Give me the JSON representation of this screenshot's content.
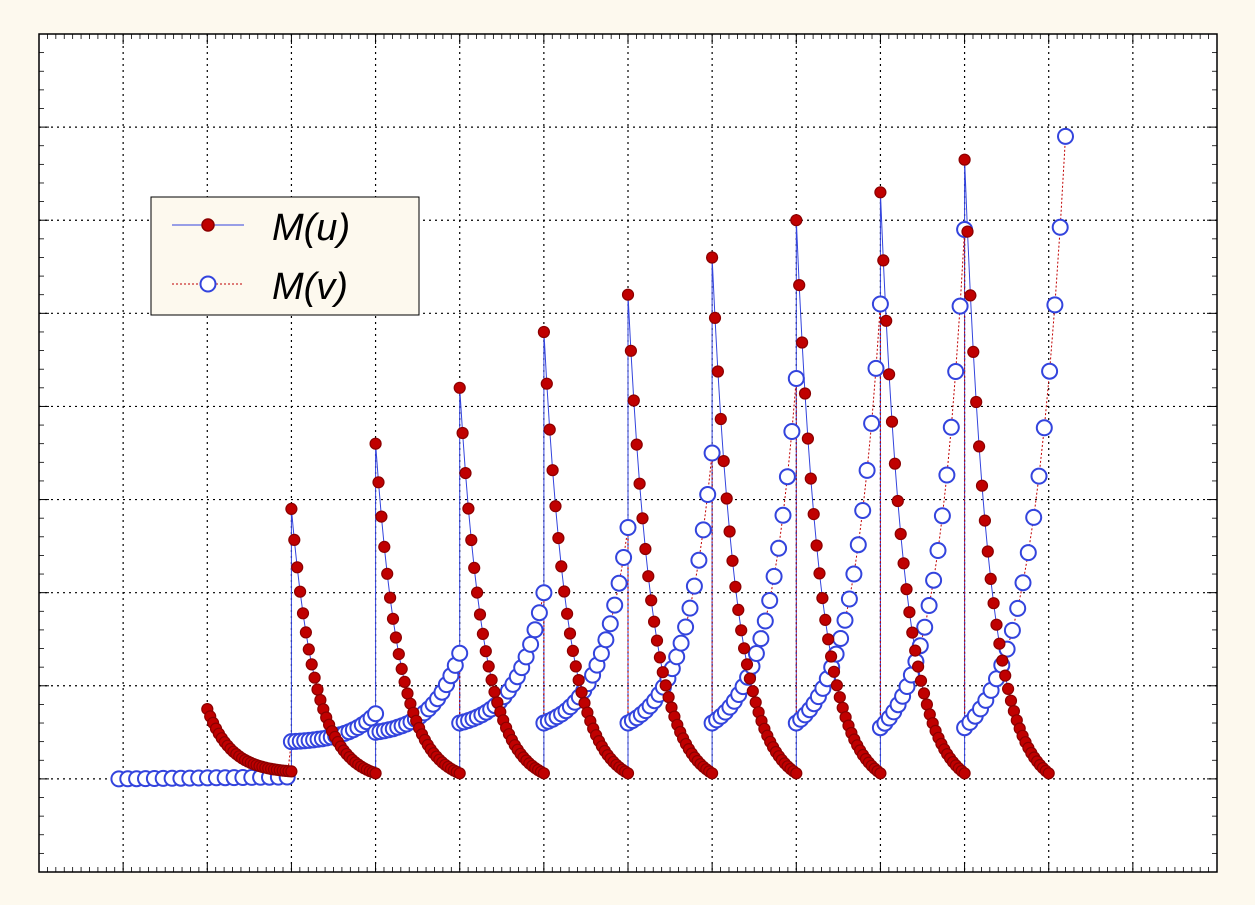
{
  "chart_data": {
    "type": "line",
    "title": "",
    "xlabel": "",
    "ylabel": "",
    "xlim": [
      0,
      14
    ],
    "ylim": [
      -1,
      8
    ],
    "grid": true,
    "legend_position": "upper-left",
    "colors": {
      "u": "#c00000",
      "v": "#3344dd",
      "axes_bg": "#ffffff",
      "page_bg": "#fdf9ee"
    },
    "series": [
      {
        "name": "M(u)",
        "marker": "filled-circle",
        "line_style": "solid",
        "segments": [
          {
            "x0": 2.0,
            "x1": 3.0,
            "start": 0.75,
            "end": 0.08
          },
          {
            "x0": 3.0,
            "x1": 4.0,
            "start": 2.9,
            "end": 0.06
          },
          {
            "x0": 4.0,
            "x1": 5.0,
            "start": 3.6,
            "end": 0.06
          },
          {
            "x0": 5.0,
            "x1": 6.0,
            "start": 4.2,
            "end": 0.06
          },
          {
            "x0": 6.0,
            "x1": 7.0,
            "start": 4.8,
            "end": 0.06
          },
          {
            "x0": 7.0,
            "x1": 8.0,
            "start": 5.2,
            "end": 0.06
          },
          {
            "x0": 8.0,
            "x1": 9.0,
            "start": 5.6,
            "end": 0.06
          },
          {
            "x0": 9.0,
            "x1": 10.0,
            "start": 6.0,
            "end": 0.06
          },
          {
            "x0": 10.0,
            "x1": 11.0,
            "start": 6.3,
            "end": 0.06
          },
          {
            "x0": 11.0,
            "x1": 12.0,
            "start": 6.65,
            "end": 0.06
          }
        ]
      },
      {
        "name": "M(v)",
        "marker": "open-circle",
        "line_style": "dotted",
        "segments": [
          {
            "x0": 0.95,
            "x1": 2.95,
            "start": 0.0,
            "end": 0.02
          },
          {
            "x0": 3.0,
            "x1": 4.0,
            "start": 0.4,
            "end": 0.7
          },
          {
            "x0": 4.0,
            "x1": 5.0,
            "start": 0.5,
            "end": 1.35
          },
          {
            "x0": 5.0,
            "x1": 6.0,
            "start": 0.6,
            "end": 2.0
          },
          {
            "x0": 6.0,
            "x1": 7.0,
            "start": 0.6,
            "end": 2.7
          },
          {
            "x0": 7.0,
            "x1": 8.0,
            "start": 0.6,
            "end": 3.5
          },
          {
            "x0": 8.0,
            "x1": 9.0,
            "start": 0.6,
            "end": 4.3
          },
          {
            "x0": 9.0,
            "x1": 10.0,
            "start": 0.6,
            "end": 5.1
          },
          {
            "x0": 10.0,
            "x1": 11.0,
            "start": 0.55,
            "end": 5.9
          },
          {
            "x0": 11.0,
            "x1": 12.2,
            "start": 0.55,
            "end": 6.9
          }
        ]
      }
    ]
  }
}
